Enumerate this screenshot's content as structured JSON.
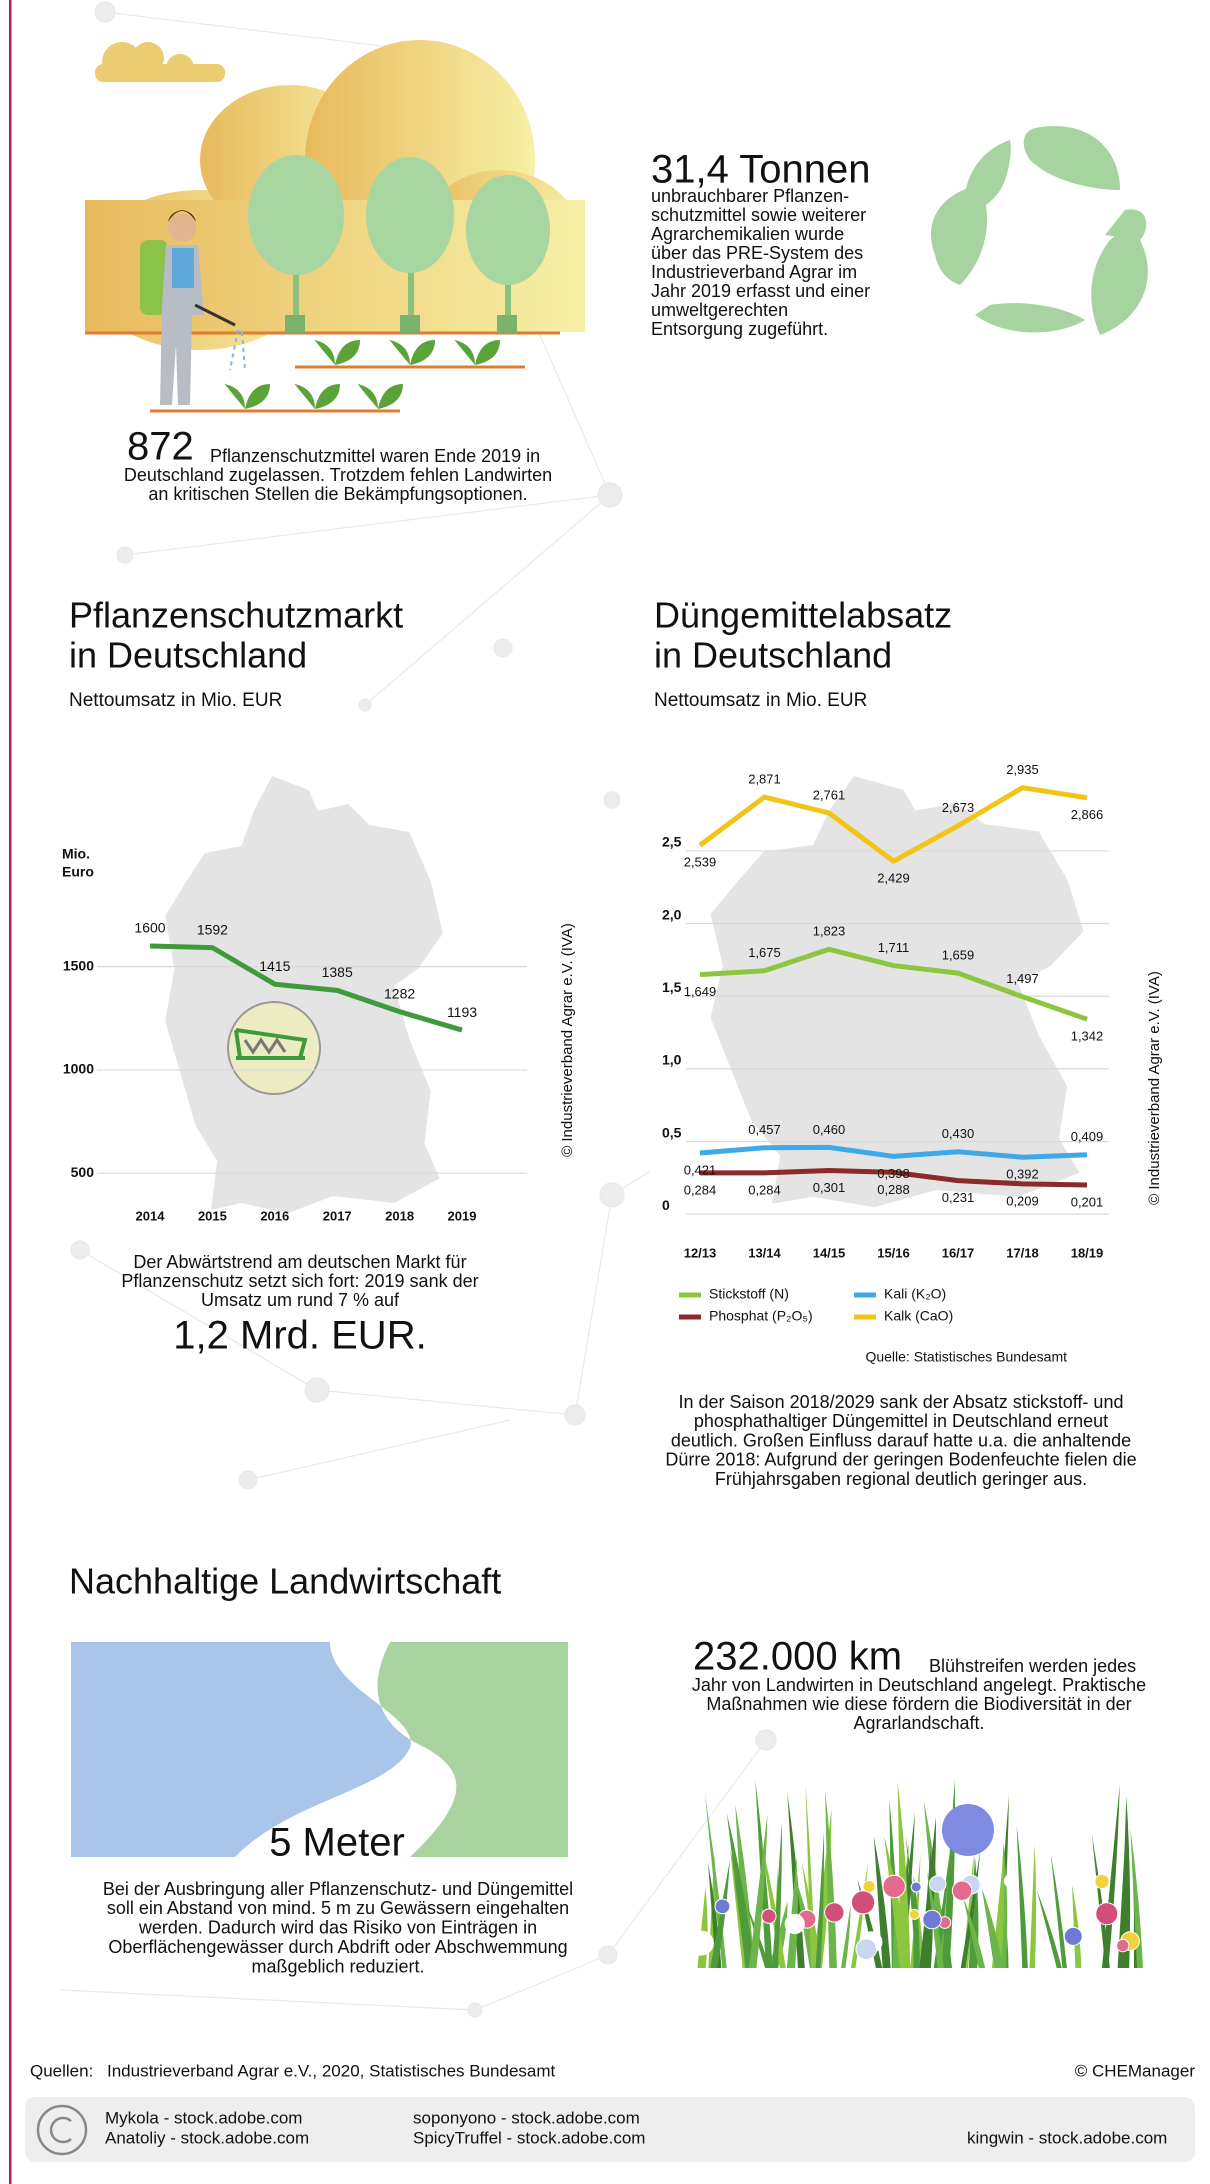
{
  "recycling": {
    "headline": "31,4 Tonnen",
    "text": [
      "unbrauchbarer Pflanzen-",
      "schutzmittel sowie weiterer",
      "Agrarchemikalien wurde",
      "über das PRE-System des",
      "Industrieverband Agrar im",
      "Jahr 2019 erfasst und einer",
      "umweltgerechten",
      "Entsorgung zugeführt."
    ]
  },
  "approved": {
    "headline": "872",
    "text": [
      "Pflanzenschutzmittel waren Ende 2019 in",
      "Deutschland zugelassen. Trotzdem fehlen Landwirten",
      "an kritischen Stellen die Bekämpfungsoptionen."
    ]
  },
  "chart_data": [
    {
      "type": "line",
      "title": [
        "Pflanzenschutzmarkt",
        "in Deutschland"
      ],
      "subtitle": "Nettoumsatz in Mio. EUR",
      "y_label": [
        "Mio.",
        "Euro"
      ],
      "categories": [
        "2014",
        "2015",
        "2016",
        "2017",
        "2018",
        "2019"
      ],
      "values": [
        1600,
        1592,
        1415,
        1385,
        1282,
        1193
      ],
      "color": "#3f9a3c",
      "ylim": [
        380,
        1750
      ],
      "yticks": [
        500,
        1000,
        1500
      ],
      "grid": true,
      "watermark": "© Industrieverband Agrar e.V. (IVA)"
    },
    {
      "type": "line",
      "title": [
        "Düngemittelabsatz",
        "in Deutschland"
      ],
      "subtitle": "Nettoumsatz in Mio. EUR",
      "categories": [
        "12/13",
        "13/14",
        "14/15",
        "15/16",
        "16/17",
        "17/18",
        "18/19"
      ],
      "series": [
        {
          "name": "Stickstoff (N)",
          "color": "#8cc63f",
          "values": [
            1.649,
            1.675,
            1.823,
            1.711,
            1.659,
            1.497,
            1.342
          ],
          "value_labels": [
            "1,649",
            "1,675",
            "1,823",
            "1,711",
            "1,659",
            "1,497",
            "1,342"
          ]
        },
        {
          "name": "Phosphat (P₂O₅)",
          "color": "#8b2a2a",
          "values": [
            0.284,
            0.284,
            0.301,
            0.288,
            0.231,
            0.209,
            0.201
          ],
          "value_labels": [
            "0,284",
            "0,284",
            "0,301",
            "0,288",
            "0,231",
            "0,209",
            "0,201"
          ]
        },
        {
          "name": "Kali (K₂O)",
          "color": "#3fa9e6",
          "values": [
            0.421,
            0.457,
            0.46,
            0.398,
            0.43,
            0.392,
            0.409
          ],
          "value_labels": [
            "0,421",
            "0,457",
            "0,460",
            "0,398",
            "0,430",
            "0,392",
            "0,409"
          ]
        },
        {
          "name": "Kalk (CaO)",
          "color": "#f2c318",
          "values": [
            2.539,
            2.871,
            2.761,
            2.429,
            2.673,
            2.935,
            2.866
          ],
          "value_labels": [
            "2,539",
            "2,871",
            "2,761",
            "2,429",
            "2,673",
            "2,935",
            "2,866"
          ]
        }
      ],
      "ylim": [
        -0.15,
        3.05
      ],
      "yticks": [
        0,
        {
          "value": 0.5,
          "label": "0,5"
        },
        {
          "value": 1.0,
          "label": "1,0"
        },
        {
          "value": 1.5,
          "label": "1,5"
        },
        {
          "value": 2.0,
          "label": "2,0"
        },
        {
          "value": 2.5,
          "label": "2,5"
        }
      ],
      "grid": true,
      "legend": "bottom-left",
      "source": "Quelle: Statistisches Bundesamt",
      "watermark": "© Industrieverband Agrar e.V. (IVA)"
    }
  ],
  "market_note": {
    "text": [
      "Der Abwärtstrend am deutschen Markt für",
      "Pflanzenschutz setzt sich fort: 2019 sank der",
      "Umsatz um rund 7 % auf"
    ],
    "highlight": "1,2 Mrd. EUR."
  },
  "fertilizer_note": {
    "text": [
      "In der Saison 2018/2029 sank der Absatz stickstoff- und",
      "phosphathaltiger Düngemittel in Deutschland erneut",
      "deutlich. Großen Einfluss darauf hatte u.a. die anhaltende",
      "Dürre 2018: Aufgrund der geringen Bodenfeuchte fielen die",
      "Frühjahrsgaben regional deutlich geringer aus."
    ]
  },
  "section_title": "Nachhaltige Landwirtschaft",
  "buffer": {
    "highlight": "5 Meter",
    "text": [
      "Bei der Ausbringung aller Pflanzenschutz- und Düngemittel",
      "soll ein Abstand von mind. 5 m zu Gewässern eingehalten",
      "werden. Dadurch wird das Risiko von Einträgen in",
      "Oberflächengewässer durch Abdrift oder Abschwemmung",
      "maßgeblich reduziert."
    ]
  },
  "flower_strips": {
    "headline": "232.000 km",
    "text": [
      "Blühstreifen werden jedes",
      "Jahr von Landwirten in Deutschland angelegt. Praktische",
      "Maßnahmen wie diese fördern die Biodiversität in der",
      "Agrarlandschaft."
    ]
  },
  "footer": {
    "sources_label": "Quellen:",
    "sources": "Industrieverband Agrar e.V., 2020, Statistisches Bundesamt",
    "copyright": "© CHEManager",
    "credits": [
      "Mykola - stock.adobe.com",
      "Anatoliy - stock.adobe.com",
      "soponyono - stock.adobe.com",
      "SpicyTruffel - stock.adobe.com",
      "kingwin - stock.adobe.com"
    ]
  }
}
